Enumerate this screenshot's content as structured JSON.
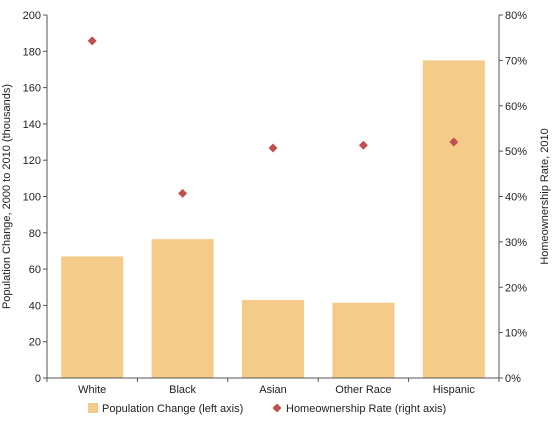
{
  "colors": {
    "bar": "#f5cb8a",
    "marker": "#c0504d",
    "axis": "#555555"
  },
  "chart_data": {
    "type": "bar",
    "categories": [
      "White",
      "Black",
      "Asian",
      "Other Race",
      "Hispanic"
    ],
    "series": [
      {
        "name": "Population Change (left axis)",
        "type": "bar",
        "axis": "left",
        "values": [
          67,
          76.5,
          43,
          41.5,
          175
        ]
      },
      {
        "name": "Homeownership Rate (right axis)",
        "type": "scatter",
        "axis": "right",
        "marker": "diamond",
        "values": [
          74.3,
          40.7,
          50.7,
          51.3,
          52.0
        ]
      }
    ],
    "ylabel_left": "Population Change, 2000 to 2010 (thousands)",
    "ylabel_right": "Homeownership Rate, 2010",
    "ylim_left": [
      0,
      200
    ],
    "ylim_right": [
      0,
      80
    ],
    "yticks_left": [
      "0",
      "20",
      "40",
      "60",
      "80",
      "100",
      "120",
      "140",
      "160",
      "180",
      "200"
    ],
    "yticks_right": [
      "0%",
      "10%",
      "20%",
      "30%",
      "40%",
      "50%",
      "60%",
      "70%",
      "80%"
    ],
    "legend_position": "bottom",
    "grid": false
  }
}
